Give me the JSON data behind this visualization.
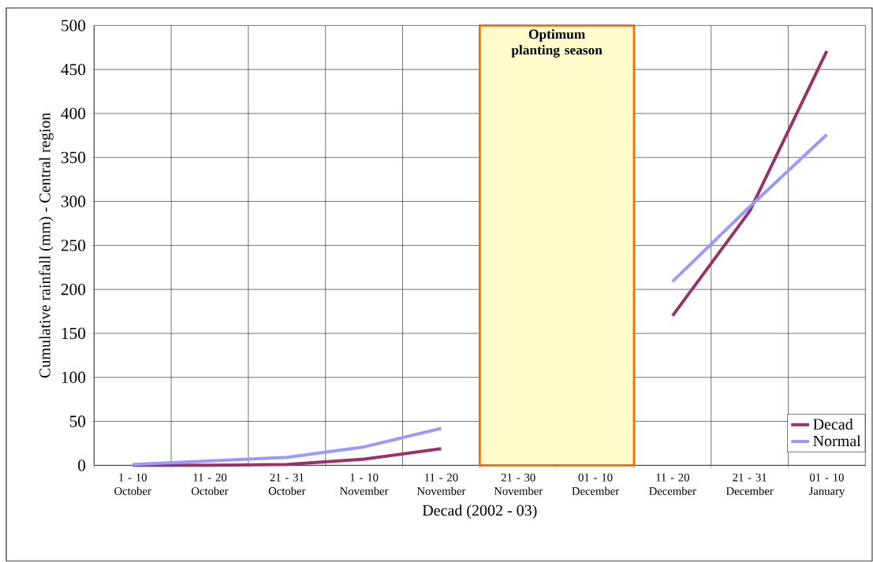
{
  "chart_data": {
    "type": "line",
    "xlabel": "Decad (2002 - 03)",
    "ylabel": "Cumulative rainfall (mm) - Central region",
    "categories": [
      "1 - 10 October",
      "11 - 20 October",
      "21 - 31 October",
      "1 - 10 November",
      "11 - 20 November",
      "21 - 30 November",
      "01 - 10 December",
      "11 - 20 December",
      "21 - 31 December",
      "01 - 10 January"
    ],
    "series": [
      {
        "name": "Decad",
        "color": "#993366",
        "values": [
          0,
          0,
          1,
          7,
          19,
          null,
          null,
          170,
          289,
          471
        ]
      },
      {
        "name": "Normal",
        "color": "#9999ff",
        "values": [
          1,
          5,
          9,
          21,
          42,
          null,
          null,
          209,
          294,
          376
        ]
      }
    ],
    "ylim": [
      0,
      500
    ],
    "yticks": [
      0,
      50,
      100,
      150,
      200,
      250,
      300,
      350,
      400,
      450,
      500
    ],
    "bands": [
      {
        "axis": "x",
        "from": "21 - 30 November",
        "to": "01 - 10 December",
        "label": "Optimum planting season",
        "color": "#fffccc"
      }
    ],
    "grid": true,
    "legend": "bottom right",
    "marker": "none",
    "line_style": "solid"
  }
}
